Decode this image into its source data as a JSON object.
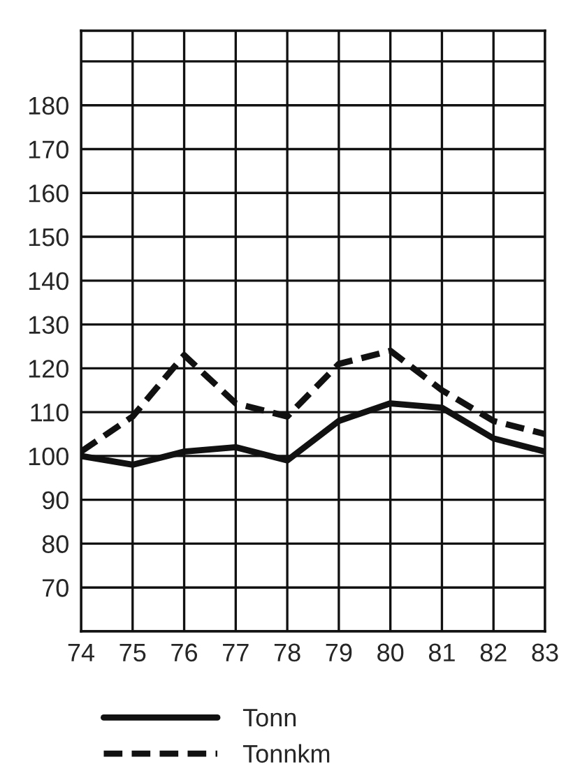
{
  "chart_data": {
    "type": "line",
    "x": [
      74,
      75,
      76,
      77,
      78,
      79,
      80,
      81,
      82,
      83
    ],
    "series": [
      {
        "name": "Tonn",
        "color": "#111111",
        "line_style": "solid",
        "values": [
          100,
          98,
          101,
          102,
          99,
          108,
          112,
          111,
          104,
          101
        ]
      },
      {
        "name": "Tonnkm",
        "color": "#111111",
        "line_style": "dashed",
        "values": [
          101,
          109,
          123,
          112,
          109,
          121,
          124,
          115,
          108,
          105
        ]
      }
    ],
    "xlim": [
      74,
      83
    ],
    "xticks": [
      74,
      75,
      76,
      77,
      78,
      79,
      80,
      81,
      82,
      83
    ],
    "ylim": [
      60,
      197
    ],
    "yticks": [
      {
        "value": 60,
        "label": null
      },
      70,
      80,
      90,
      100,
      110,
      120,
      130,
      140,
      150,
      160,
      170,
      180,
      {
        "value": 190,
        "label": null
      }
    ],
    "grid": true,
    "legend": "bottom",
    "marker": "none"
  }
}
